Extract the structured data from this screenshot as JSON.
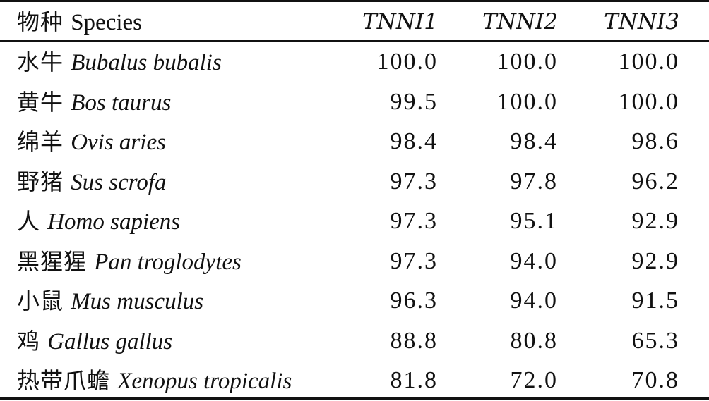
{
  "table": {
    "header": {
      "species_zh": "物种",
      "species_en": "Species",
      "col1": "TNNI1",
      "col2": "TNNI2",
      "col3": "TNNI3"
    },
    "rows": [
      {
        "zh": "水牛",
        "sci": "Bubalus bubalis",
        "v1": "100.0",
        "v2": "100.0",
        "v3": "100.0"
      },
      {
        "zh": "黄牛",
        "sci": "Bos taurus",
        "v1": "99.5",
        "v2": "100.0",
        "v3": "100.0"
      },
      {
        "zh": "绵羊",
        "sci": "Ovis aries",
        "v1": "98.4",
        "v2": "98.4",
        "v3": "98.6"
      },
      {
        "zh": "野猪",
        "sci": "Sus scrofa",
        "v1": "97.3",
        "v2": "97.8",
        "v3": "96.2"
      },
      {
        "zh": "人",
        "sci": "Homo sapiens",
        "v1": "97.3",
        "v2": "95.1",
        "v3": "92.9"
      },
      {
        "zh": "黑猩猩",
        "sci": "Pan troglodytes",
        "v1": "97.3",
        "v2": "94.0",
        "v3": "92.9"
      },
      {
        "zh": "小鼠",
        "sci": "Mus musculus",
        "v1": "96.3",
        "v2": "94.0",
        "v3": "91.5"
      },
      {
        "zh": "鸡",
        "sci": "Gallus gallus",
        "v1": "88.8",
        "v2": "80.8",
        "v3": "65.3"
      },
      {
        "zh": "热带爪蟾",
        "sci": "Xenopus tropicalis",
        "v1": "81.8",
        "v2": "72.0",
        "v3": "70.8"
      }
    ]
  }
}
